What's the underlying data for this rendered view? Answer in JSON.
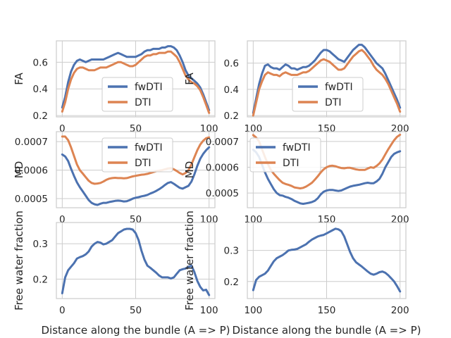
{
  "colors": {
    "fwDTI": "#4c72b0",
    "DTI": "#dd8452",
    "grid": "#cccccc",
    "axes_bg": "#ffffff"
  },
  "chart_data": [
    {
      "type": "line",
      "panel": "top-left",
      "ylabel": "FA",
      "xlabel": "",
      "xlim": [
        -4,
        104
      ],
      "ylim": [
        0.19,
        0.76
      ],
      "xticks": [
        "0",
        "50",
        "100"
      ],
      "xtick_values": [
        0,
        50,
        100
      ],
      "yticks": [
        "0.2",
        "0.4",
        "0.6"
      ],
      "ytick_values": [
        0.2,
        0.4,
        0.6
      ],
      "grid": true,
      "legend": "center",
      "x": [
        0,
        2,
        4,
        6,
        8,
        10,
        12,
        14,
        16,
        18,
        20,
        22,
        24,
        26,
        28,
        30,
        32,
        34,
        36,
        38,
        40,
        42,
        44,
        46,
        48,
        50,
        52,
        54,
        56,
        58,
        60,
        62,
        64,
        66,
        68,
        70,
        72,
        74,
        76,
        78,
        80,
        82,
        84,
        86,
        88,
        90,
        92,
        94,
        96,
        98,
        100
      ],
      "series": [
        {
          "name": "fwDTI",
          "values": [
            0.26,
            0.34,
            0.45,
            0.53,
            0.58,
            0.61,
            0.62,
            0.61,
            0.6,
            0.61,
            0.62,
            0.62,
            0.62,
            0.62,
            0.62,
            0.63,
            0.64,
            0.65,
            0.66,
            0.67,
            0.66,
            0.65,
            0.64,
            0.64,
            0.64,
            0.64,
            0.65,
            0.66,
            0.68,
            0.69,
            0.69,
            0.7,
            0.7,
            0.7,
            0.71,
            0.71,
            0.72,
            0.72,
            0.71,
            0.69,
            0.65,
            0.6,
            0.54,
            0.5,
            0.48,
            0.46,
            0.44,
            0.41,
            0.36,
            0.3,
            0.24
          ]
        },
        {
          "name": "DTI",
          "values": [
            0.23,
            0.3,
            0.4,
            0.47,
            0.52,
            0.55,
            0.56,
            0.56,
            0.55,
            0.54,
            0.54,
            0.54,
            0.55,
            0.56,
            0.56,
            0.56,
            0.57,
            0.58,
            0.59,
            0.6,
            0.6,
            0.59,
            0.58,
            0.57,
            0.57,
            0.58,
            0.6,
            0.62,
            0.64,
            0.65,
            0.65,
            0.66,
            0.66,
            0.67,
            0.67,
            0.67,
            0.68,
            0.68,
            0.66,
            0.64,
            0.6,
            0.55,
            0.5,
            0.47,
            0.45,
            0.44,
            0.42,
            0.39,
            0.34,
            0.28,
            0.22
          ]
        }
      ]
    },
    {
      "type": "line",
      "panel": "top-right",
      "ylabel": "FA",
      "xlabel": "",
      "xlim": [
        96,
        204
      ],
      "ylim": [
        0.19,
        0.77
      ],
      "xticks": [
        "100",
        "150",
        "200"
      ],
      "xtick_values": [
        100,
        150,
        200
      ],
      "yticks": [
        "0.2",
        "0.4",
        "0.6"
      ],
      "ytick_values": [
        0.2,
        0.4,
        0.6
      ],
      "grid": true,
      "legend": "center",
      "x": [
        100,
        102,
        104,
        106,
        108,
        110,
        112,
        114,
        116,
        118,
        120,
        122,
        124,
        126,
        128,
        130,
        132,
        134,
        136,
        138,
        140,
        142,
        144,
        146,
        148,
        150,
        152,
        154,
        156,
        158,
        160,
        162,
        164,
        166,
        168,
        170,
        172,
        174,
        176,
        178,
        180,
        182,
        184,
        186,
        188,
        190,
        192,
        194,
        196,
        198,
        200
      ],
      "series": [
        {
          "name": "fwDTI",
          "values": [
            0.22,
            0.33,
            0.44,
            0.52,
            0.58,
            0.59,
            0.57,
            0.56,
            0.56,
            0.55,
            0.57,
            0.59,
            0.58,
            0.56,
            0.56,
            0.55,
            0.56,
            0.57,
            0.57,
            0.58,
            0.6,
            0.62,
            0.65,
            0.68,
            0.7,
            0.7,
            0.69,
            0.67,
            0.65,
            0.63,
            0.62,
            0.61,
            0.64,
            0.67,
            0.7,
            0.72,
            0.74,
            0.74,
            0.72,
            0.69,
            0.66,
            0.63,
            0.6,
            0.58,
            0.56,
            0.52,
            0.47,
            0.42,
            0.37,
            0.32,
            0.26
          ]
        },
        {
          "name": "DTI",
          "values": [
            0.2,
            0.3,
            0.4,
            0.46,
            0.51,
            0.53,
            0.52,
            0.51,
            0.51,
            0.5,
            0.52,
            0.53,
            0.52,
            0.51,
            0.51,
            0.51,
            0.52,
            0.53,
            0.53,
            0.54,
            0.56,
            0.58,
            0.6,
            0.62,
            0.63,
            0.62,
            0.61,
            0.59,
            0.57,
            0.55,
            0.55,
            0.56,
            0.59,
            0.62,
            0.65,
            0.67,
            0.69,
            0.7,
            0.68,
            0.65,
            0.62,
            0.58,
            0.55,
            0.53,
            0.51,
            0.48,
            0.44,
            0.39,
            0.34,
            0.29,
            0.23
          ]
        }
      ]
    },
    {
      "type": "line",
      "panel": "middle-left",
      "ylabel": "MD",
      "xlabel": "",
      "xlim": [
        -4,
        104
      ],
      "ylim": [
        0.000468,
        0.000735
      ],
      "xticks": [
        "0",
        "50",
        "100"
      ],
      "xtick_values": [
        0,
        50,
        100
      ],
      "yticks": [
        "0.0005",
        "0.0006",
        "0.0007"
      ],
      "ytick_values": [
        0.0005,
        0.0006,
        0.0007
      ],
      "grid": true,
      "legend": "top-center",
      "x": [
        0,
        2,
        4,
        6,
        8,
        10,
        12,
        14,
        16,
        18,
        20,
        22,
        24,
        26,
        28,
        30,
        32,
        34,
        36,
        38,
        40,
        42,
        44,
        46,
        48,
        50,
        52,
        54,
        56,
        58,
        60,
        62,
        64,
        66,
        68,
        70,
        72,
        74,
        76,
        78,
        80,
        82,
        84,
        86,
        88,
        90,
        92,
        94,
        96,
        98,
        100
      ],
      "series": [
        {
          "name": "fwDTI",
          "values": [
            0.000655,
            0.000648,
            0.000632,
            0.000605,
            0.00058,
            0.000557,
            0.00054,
            0.000525,
            0.00051,
            0.000495,
            0.000485,
            0.00048,
            0.000478,
            0.000482,
            0.000485,
            0.000485,
            0.000488,
            0.00049,
            0.000492,
            0.000493,
            0.000492,
            0.00049,
            0.000491,
            0.000495,
            0.0005,
            0.000503,
            0.000505,
            0.000508,
            0.00051,
            0.000513,
            0.000518,
            0.000522,
            0.000527,
            0.000533,
            0.00054,
            0.000548,
            0.000555,
            0.000558,
            0.000552,
            0.000545,
            0.000538,
            0.000535,
            0.00054,
            0.000545,
            0.00056,
            0.000585,
            0.000615,
            0.00064,
            0.000657,
            0.00067,
            0.00068
          ]
        },
        {
          "name": "DTI",
          "values": [
            0.000718,
            0.000718,
            0.000705,
            0.00068,
            0.00065,
            0.00062,
            0.0006,
            0.000588,
            0.000575,
            0.000563,
            0.000555,
            0.000552,
            0.000553,
            0.000555,
            0.00056,
            0.000566,
            0.00057,
            0.000572,
            0.000573,
            0.000572,
            0.000572,
            0.000571,
            0.000572,
            0.000575,
            0.000578,
            0.00058,
            0.000582,
            0.000584,
            0.000585,
            0.000587,
            0.00059,
            0.000593,
            0.000596,
            0.000598,
            0.0006,
            0.000603,
            0.000606,
            0.000607,
            0.000603,
            0.000597,
            0.00059,
            0.000585,
            0.00059,
            0.0006,
            0.00062,
            0.000645,
            0.00067,
            0.00069,
            0.000703,
            0.000712,
            0.000715
          ]
        }
      ]
    },
    {
      "type": "line",
      "panel": "middle-right",
      "ylabel": "MD",
      "xlabel": "",
      "xlim": [
        96,
        204
      ],
      "ylim": [
        0.000443,
        0.000738
      ],
      "xticks": [
        "100",
        "150",
        "200"
      ],
      "xtick_values": [
        100,
        150,
        200
      ],
      "yticks": [
        "0.0005",
        "0.0006",
        "0.0007"
      ],
      "ytick_values": [
        0.0005,
        0.0006,
        0.0007
      ],
      "grid": true,
      "legend": "top-left",
      "x": [
        100,
        102,
        104,
        106,
        108,
        110,
        112,
        114,
        116,
        118,
        120,
        122,
        124,
        126,
        128,
        130,
        132,
        134,
        136,
        138,
        140,
        142,
        144,
        146,
        148,
        150,
        152,
        154,
        156,
        158,
        160,
        162,
        164,
        166,
        168,
        170,
        172,
        174,
        176,
        178,
        180,
        182,
        184,
        186,
        188,
        190,
        192,
        194,
        196,
        198,
        200
      ],
      "series": [
        {
          "name": "fwDTI",
          "values": [
            0.000668,
            0.000658,
            0.00064,
            0.00061,
            0.00058,
            0.000555,
            0.000535,
            0.000515,
            0.0005,
            0.000492,
            0.00049,
            0.000485,
            0.000482,
            0.000477,
            0.00047,
            0.000465,
            0.00046,
            0.000458,
            0.00046,
            0.000462,
            0.000465,
            0.00047,
            0.00048,
            0.000495,
            0.000505,
            0.00051,
            0.000512,
            0.000512,
            0.00051,
            0.000508,
            0.00051,
            0.000515,
            0.00052,
            0.000525,
            0.000528,
            0.00053,
            0.000532,
            0.000535,
            0.000538,
            0.00054,
            0.000538,
            0.000538,
            0.000545,
            0.000555,
            0.000575,
            0.0006,
            0.00062,
            0.00064,
            0.000652,
            0.000658,
            0.000662
          ]
        },
        {
          "name": "DTI",
          "values": [
            0.000725,
            0.000715,
            0.0007,
            0.00067,
            0.00064,
            0.000612,
            0.00059,
            0.000575,
            0.000562,
            0.00055,
            0.00054,
            0.000535,
            0.000532,
            0.000528,
            0.000522,
            0.00052,
            0.000518,
            0.00052,
            0.000525,
            0.000532,
            0.00054,
            0.000552,
            0.000565,
            0.00058,
            0.000592,
            0.0006,
            0.000605,
            0.000606,
            0.000604,
            0.0006,
            0.000597,
            0.000596,
            0.000598,
            0.000598,
            0.000595,
            0.000592,
            0.00059,
            0.00059,
            0.00059,
            0.000595,
            0.0006,
            0.000598,
            0.000605,
            0.000615,
            0.00063,
            0.00065,
            0.00067,
            0.000688,
            0.000705,
            0.000718,
            0.000726
          ]
        }
      ]
    },
    {
      "type": "line",
      "panel": "bottom-left",
      "ylabel": "Free water fraction",
      "xlabel": "Distance along the bundle (A => P)",
      "xlim": [
        -4,
        104
      ],
      "ylim": [
        0.145,
        0.36
      ],
      "xticks": [
        "0",
        "50",
        "100"
      ],
      "xtick_values": [
        0,
        50,
        100
      ],
      "yticks": [
        "0.2",
        "0.3"
      ],
      "ytick_values": [
        0.2,
        0.3
      ],
      "grid": true,
      "legend": "none",
      "x": [
        0,
        2,
        4,
        6,
        8,
        10,
        12,
        14,
        16,
        18,
        20,
        22,
        24,
        26,
        28,
        30,
        32,
        34,
        36,
        38,
        40,
        42,
        44,
        46,
        48,
        50,
        52,
        54,
        56,
        58,
        60,
        62,
        64,
        66,
        68,
        70,
        72,
        74,
        76,
        78,
        80,
        82,
        84,
        86,
        88,
        90,
        92,
        94,
        96,
        98,
        100
      ],
      "series": [
        {
          "name": "fwDTI",
          "values": [
            0.16,
            0.205,
            0.225,
            0.235,
            0.245,
            0.258,
            0.262,
            0.265,
            0.27,
            0.278,
            0.292,
            0.3,
            0.305,
            0.303,
            0.298,
            0.3,
            0.305,
            0.31,
            0.32,
            0.33,
            0.335,
            0.34,
            0.342,
            0.342,
            0.34,
            0.33,
            0.31,
            0.28,
            0.255,
            0.238,
            0.232,
            0.225,
            0.218,
            0.21,
            0.205,
            0.205,
            0.205,
            0.202,
            0.205,
            0.215,
            0.225,
            0.228,
            0.23,
            0.235,
            0.238,
            0.22,
            0.195,
            0.178,
            0.168,
            0.17,
            0.155
          ]
        }
      ]
    },
    {
      "type": "line",
      "panel": "bottom-right",
      "ylabel": "Free water fraction",
      "xlabel": "Distance along the bundle (A => P)",
      "xlim": [
        96,
        204
      ],
      "ylim": [
        0.145,
        0.39
      ],
      "xticks": [
        "100",
        "150",
        "200"
      ],
      "xtick_values": [
        100,
        150,
        200
      ],
      "yticks": [
        "0.2",
        "0.3"
      ],
      "ytick_values": [
        0.2,
        0.3
      ],
      "grid": true,
      "legend": "none",
      "x": [
        100,
        102,
        104,
        106,
        108,
        110,
        112,
        114,
        116,
        118,
        120,
        122,
        124,
        126,
        128,
        130,
        132,
        134,
        136,
        138,
        140,
        142,
        144,
        146,
        148,
        150,
        152,
        154,
        156,
        158,
        160,
        162,
        164,
        166,
        168,
        170,
        172,
        174,
        176,
        178,
        180,
        182,
        184,
        186,
        188,
        190,
        192,
        194,
        196,
        198,
        200
      ],
      "series": [
        {
          "name": "fwDTI",
          "values": [
            0.172,
            0.205,
            0.215,
            0.22,
            0.225,
            0.235,
            0.25,
            0.265,
            0.275,
            0.28,
            0.285,
            0.292,
            0.3,
            0.302,
            0.303,
            0.305,
            0.31,
            0.315,
            0.32,
            0.328,
            0.335,
            0.34,
            0.345,
            0.348,
            0.35,
            0.355,
            0.36,
            0.365,
            0.37,
            0.368,
            0.362,
            0.345,
            0.32,
            0.295,
            0.275,
            0.262,
            0.255,
            0.248,
            0.24,
            0.232,
            0.225,
            0.222,
            0.225,
            0.23,
            0.232,
            0.228,
            0.22,
            0.21,
            0.2,
            0.185,
            0.168
          ]
        }
      ]
    }
  ]
}
